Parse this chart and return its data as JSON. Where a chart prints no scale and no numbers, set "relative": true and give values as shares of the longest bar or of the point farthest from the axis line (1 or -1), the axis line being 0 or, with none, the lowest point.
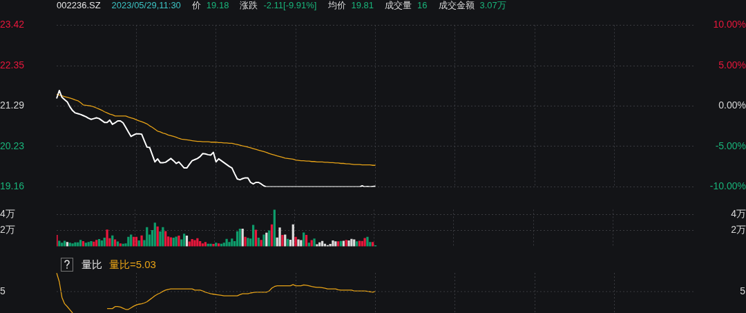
{
  "chart_data": [
    {
      "type": "line",
      "annotations": [
        "002236.SZ",
        "2023/05/29,11:30",
        "价",
        "19.18",
        "涨跌",
        "-2.11[-9.91%]",
        "均价",
        "19.81",
        "成交量",
        "16",
        "成交金额",
        "3.07万"
      ],
      "categories": [
        null,
        null,
        null,
        null,
        null,
        null,
        null,
        null,
        null,
        null,
        null,
        null,
        null,
        null,
        null,
        null,
        null,
        null,
        null,
        null,
        null,
        null,
        null,
        null,
        null,
        null,
        null,
        null,
        null,
        null,
        null,
        null,
        null,
        null,
        null,
        null,
        null,
        null,
        null,
        null,
        null,
        null,
        null,
        null,
        null,
        null,
        null,
        null,
        null,
        null,
        null,
        null,
        null,
        null,
        null,
        null,
        null,
        null,
        null,
        null,
        null,
        null,
        null,
        null,
        null,
        null,
        null,
        null,
        null,
        null,
        null,
        null,
        null,
        null,
        null,
        null,
        null,
        null,
        null,
        null,
        null,
        null,
        null,
        null,
        null,
        null,
        null,
        null,
        null,
        null,
        null,
        null,
        null,
        null,
        null,
        null,
        null,
        null,
        null,
        null,
        null,
        null,
        null,
        null,
        null,
        null,
        null,
        null,
        null,
        null,
        null,
        null,
        null,
        null,
        null,
        null,
        null,
        null,
        null,
        null,
        null,
        null,
        null,
        null,
        null,
        null,
        null,
        null,
        null,
        null,
        null,
        null,
        null,
        null,
        null,
        null,
        null,
        null,
        null,
        null,
        null,
        null,
        null,
        null,
        null,
        null,
        null,
        null,
        null,
        null,
        null,
        null,
        null,
        null,
        null,
        null,
        null,
        null,
        null,
        null,
        null,
        null,
        null,
        null,
        null,
        null,
        null,
        null,
        null,
        null,
        null,
        null,
        null,
        null,
        null,
        null,
        null,
        null,
        null,
        null,
        null,
        null,
        null,
        null,
        null,
        null,
        null,
        null,
        null,
        null,
        null,
        null,
        null,
        null,
        null,
        null,
        null,
        null,
        null,
        null,
        null,
        null,
        null,
        null,
        null,
        null,
        null,
        null,
        null,
        null,
        null,
        null,
        null,
        null,
        null,
        null,
        null,
        null,
        null,
        null,
        null,
        null,
        null,
        null,
        null,
        null,
        null,
        null,
        null,
        null,
        null,
        null,
        null,
        null,
        null,
        null,
        null,
        null,
        null,
        null,
        null
      ],
      "series": [
        {
          "color": "#ffffff",
          "values": [
            21.49,
            21.7,
            21.52,
            21.46,
            21.4,
            21.27,
            21.17,
            21.11,
            21.09,
            21.07,
            21.04,
            21.01,
            20.97,
            20.94,
            20.96,
            20.98,
            20.96,
            20.91,
            20.86,
            20.86,
            20.92,
            20.81,
            20.85,
            20.9,
            20.9,
            20.85,
            20.73,
            20.61,
            20.49,
            20.53,
            20.56,
            20.56,
            20.55,
            20.38,
            20.21,
            20.2,
            20.01,
            19.82,
            19.9,
            19.8,
            19.8,
            19.81,
            19.86,
            19.91,
            19.85,
            19.78,
            19.82,
            19.74,
            19.66,
            19.66,
            19.76,
            19.85,
            19.88,
            19.91,
            19.96,
            20.04,
            20.03,
            20.01,
            20.0,
            20.07,
            19.82,
            19.9,
            19.85,
            19.8,
            19.75,
            19.7,
            19.66,
            19.51,
            19.37,
            19.35,
            19.38,
            19.4,
            19.4,
            19.28,
            19.24,
            19.28,
            19.28,
            19.24,
            19.19,
            19.16,
            19.16,
            19.16,
            19.16,
            19.16,
            19.16,
            19.16,
            19.16,
            19.16,
            19.16,
            19.16,
            19.16,
            19.16,
            19.16,
            19.16,
            19.16,
            19.16,
            19.16,
            19.16,
            19.16,
            19.16,
            19.16,
            19.16,
            19.16,
            19.16,
            19.16,
            19.16,
            19.16,
            19.16,
            19.16,
            19.16,
            19.16,
            19.16,
            19.16,
            19.16,
            19.16,
            19.19,
            19.16,
            19.17,
            19.16,
            19.17,
            19.18,
            null,
            null,
            null,
            null,
            null,
            null,
            null,
            null,
            null,
            null,
            null,
            null,
            null,
            null,
            null,
            null,
            null,
            null,
            null,
            null,
            null,
            null,
            null,
            null,
            null,
            null,
            null,
            null,
            null,
            null,
            null,
            null,
            null,
            null,
            null,
            null,
            null,
            null,
            null,
            null,
            null,
            null,
            null,
            null,
            null,
            null,
            null,
            null,
            null,
            null,
            null,
            null,
            null,
            null,
            null,
            null,
            null,
            null,
            null,
            null,
            null,
            null,
            null,
            null,
            null,
            null,
            null,
            null,
            null,
            null,
            null,
            null,
            null,
            null,
            null,
            null,
            null,
            null,
            null,
            null,
            null,
            null,
            null,
            null,
            null,
            null,
            null,
            null,
            null,
            null,
            null,
            null,
            null,
            null,
            null,
            null,
            null,
            null,
            null,
            null,
            null,
            null,
            null,
            null,
            null,
            null,
            null,
            null,
            null,
            null,
            null,
            null,
            null,
            null,
            null,
            null,
            null,
            null,
            null,
            null
          ]
        },
        {
          "color": "#e8a317",
          "values": [
            21.6,
            21.58,
            21.56,
            21.54,
            21.52,
            21.5,
            21.48,
            21.45,
            21.43,
            21.38,
            21.32,
            21.31,
            21.3,
            21.29,
            21.27,
            21.24,
            21.21,
            21.18,
            21.14,
            21.11,
            21.08,
            21.06,
            21.03,
            21.03,
            21.03,
            21.03,
            21.03,
            21.0,
            20.98,
            20.96,
            20.93,
            20.9,
            20.88,
            20.85,
            20.82,
            20.77,
            20.73,
            20.68,
            20.63,
            20.61,
            20.58,
            20.56,
            20.53,
            20.51,
            20.49,
            20.47,
            20.44,
            20.42,
            20.41,
            20.4,
            20.39,
            20.38,
            20.37,
            20.36,
            20.36,
            20.35,
            20.35,
            20.35,
            20.34,
            20.34,
            20.34,
            20.33,
            20.33,
            20.32,
            20.32,
            20.31,
            20.31,
            20.29,
            20.28,
            20.26,
            20.24,
            20.23,
            20.21,
            20.19,
            20.17,
            20.15,
            20.13,
            20.11,
            20.09,
            20.07,
            20.04,
            20.02,
            20.0,
            19.98,
            19.96,
            19.94,
            19.92,
            19.91,
            19.9,
            19.89,
            19.87,
            19.86,
            19.85,
            19.85,
            19.84,
            19.84,
            19.83,
            19.83,
            19.82,
            19.82,
            19.82,
            19.81,
            19.81,
            19.8,
            19.8,
            19.79,
            19.79,
            19.78,
            19.78,
            19.77,
            19.77,
            19.76,
            19.75,
            19.75,
            19.75,
            19.74,
            19.74,
            19.74,
            19.74,
            19.73,
            19.73,
            null,
            null,
            null,
            null,
            null,
            null,
            null,
            null,
            null,
            null,
            null,
            null,
            null,
            null,
            null,
            null,
            null,
            null,
            null,
            null,
            null,
            null,
            null,
            null,
            null,
            null,
            null,
            null,
            null,
            null,
            null,
            null,
            null,
            null,
            null,
            null,
            null,
            null,
            null,
            null,
            null,
            null,
            null,
            null,
            null,
            null,
            null,
            null,
            null,
            null,
            null,
            null,
            null,
            null,
            null,
            null,
            null,
            null,
            null,
            null,
            null,
            null,
            null,
            null,
            null,
            null,
            null,
            null,
            null,
            null,
            null,
            null,
            null,
            null,
            null,
            null,
            null,
            null,
            null,
            null,
            null,
            null,
            null,
            null,
            null,
            null,
            null,
            null,
            null,
            null,
            null,
            null,
            null,
            null,
            null,
            null,
            null,
            null,
            null,
            null,
            null,
            null,
            null,
            null,
            null,
            null,
            null,
            null,
            null,
            null,
            null,
            null,
            null,
            null,
            null,
            null,
            null,
            null,
            null,
            null
          ]
        }
      ],
      "ylim": [
        19.16,
        23.42
      ],
      "yticks": [
        19.16,
        20.23,
        21.29,
        22.35,
        23.42
      ],
      "y2lim": [
        -10,
        10
      ],
      "y2ticks": [
        {
          "value": -10,
          "label": "-10.00%"
        },
        {
          "value": -5,
          "label": "-5.00%"
        },
        {
          "value": 0,
          "label": "0.00%"
        },
        {
          "value": 5,
          "label": "5.00%"
        },
        {
          "value": 10,
          "label": "10.00%"
        }
      ],
      "grid": true,
      "tick_labels": "y"
    },
    {
      "type": "bar",
      "categories": [
        null,
        null,
        null,
        null,
        null,
        null,
        null,
        null,
        null,
        null,
        null,
        null,
        null,
        null,
        null,
        null,
        null,
        null,
        null,
        null,
        null,
        null,
        null,
        null,
        null,
        null,
        null,
        null,
        null,
        null,
        null,
        null,
        null,
        null,
        null,
        null,
        null,
        null,
        null,
        null,
        null,
        null,
        null,
        null,
        null,
        null,
        null,
        null,
        null,
        null,
        null,
        null,
        null,
        null,
        null,
        null,
        null,
        null,
        null,
        null,
        null,
        null,
        null,
        null,
        null,
        null,
        null,
        null,
        null,
        null,
        null,
        null,
        null,
        null,
        null,
        null,
        null,
        null,
        null,
        null,
        null,
        null,
        null,
        null,
        null,
        null,
        null,
        null,
        null,
        null,
        null,
        null,
        null,
        null,
        null,
        null,
        null,
        null,
        null,
        null,
        null,
        null,
        null,
        null,
        null,
        null,
        null,
        null,
        null,
        null,
        null,
        null,
        null,
        null,
        null,
        null,
        null,
        null,
        null,
        null,
        null,
        null,
        null,
        null,
        null,
        null,
        null,
        null,
        null,
        null,
        null,
        null,
        null,
        null,
        null,
        null,
        null,
        null,
        null,
        null,
        null,
        null,
        null,
        null,
        null,
        null,
        null,
        null,
        null,
        null,
        null,
        null,
        null,
        null,
        null,
        null,
        null,
        null,
        null,
        null,
        null,
        null,
        null,
        null,
        null,
        null,
        null,
        null,
        null,
        null,
        null,
        null,
        null,
        null,
        null,
        null,
        null,
        null,
        null,
        null,
        null,
        null,
        null,
        null,
        null,
        null,
        null,
        null,
        null,
        null,
        null,
        null,
        null,
        null,
        null,
        null,
        null,
        null,
        null,
        null,
        null,
        null,
        null,
        null,
        null,
        null,
        null,
        null,
        null,
        null,
        null,
        null,
        null,
        null,
        null,
        null,
        null,
        null,
        null,
        null,
        null,
        null,
        null,
        null,
        null,
        null,
        null,
        null,
        null,
        null,
        null,
        null,
        null,
        null,
        null,
        null,
        null,
        null,
        null,
        null,
        null
      ],
      "series": [
        {
          "values": [
            1.4,
            0.67,
            0.43,
            0.67,
            0.52,
            0.43,
            0.34,
            0.47,
            0.47,
            0.79,
            0.62,
            0.43,
            0.52,
            0.62,
            0.56,
            0.79,
            0.88,
            0.71,
            1.07,
            2.07,
            0.99,
            1.35,
            0.84,
            0.58,
            0.34,
            0.3,
            0.34,
            1.16,
            1.44,
            1.16,
            1.16,
            0.71,
            1.35,
            0.75,
            2.39,
            1.44,
            2.02,
            2.95,
            2.47,
            1.83,
            2.39,
            1.89,
            1.21,
            1.1,
            1.07,
            1.18,
            1.31,
            0.84,
            1.55,
            1.31,
            0.58,
            0.88,
            0.75,
            0.99,
            0.62,
            0.34,
            0.52,
            0.3,
            0.3,
            0.28,
            0.43,
            0.34,
            0.3,
            0.43,
            0.9,
            0.52,
            0.95,
            0.62,
            1.87,
            2.19,
            2.19,
            1.16,
            1.03,
            0.95,
            2.67,
            2.06,
            1.07,
            0.79,
            1.44,
            1.68,
            1.96,
            2.73,
            4.6,
            1.08,
            2.34,
            1.4,
            1.46,
            0.9,
            0.8,
            2.73,
            1.16,
            0.84,
            0.75,
            1.72,
            1.4,
            0.43,
            0.75,
            0.95,
            0.24,
            0.47,
            0.65,
            0.3,
            0.13,
            0.28,
            0.71,
            0.6,
            0.6,
            0.65,
            0.67,
            0.79,
            0.71,
            0.9,
            0.84,
            0.6,
            0.67,
            0.65,
            1.01,
            1.16,
            0.52,
            0.52,
            0.11,
            null,
            null,
            null,
            null,
            null,
            null,
            null,
            null,
            null,
            null,
            null,
            null,
            null,
            null,
            null,
            null,
            null,
            null,
            null,
            null,
            null,
            null,
            null,
            null,
            null,
            null,
            null,
            null,
            null,
            null,
            null,
            null,
            null,
            null,
            null,
            null,
            null,
            null,
            null,
            null,
            null,
            null,
            null,
            null,
            null,
            null,
            null,
            null,
            null,
            null,
            null,
            null,
            null,
            null,
            null,
            null,
            null,
            null,
            null,
            null,
            null,
            null,
            null,
            null,
            null,
            null,
            null,
            null,
            null,
            null,
            null,
            null,
            null,
            null,
            null,
            null,
            null,
            null,
            null,
            null,
            null,
            null,
            null,
            null,
            null,
            null,
            null,
            null,
            null,
            null,
            null,
            null,
            null,
            null,
            null,
            null,
            null,
            null,
            null,
            null,
            null,
            null,
            null,
            null,
            null,
            null,
            null,
            null,
            null,
            null,
            null,
            null,
            null,
            null,
            null,
            null,
            null,
            null,
            null,
            null
          ],
          "colors": [
            "#e8173c",
            "#0e9c6b",
            "#0e9c6b",
            "#0e9c6b",
            "#dcdcdc",
            "#0e9c6b",
            "#0e9c6b",
            "#0e9c6b",
            "#0e9c6b",
            "#0e9c6b",
            "#e8173c",
            "#0e9c6b",
            "#0e9c6b",
            "#0e9c6b",
            "#e8173c",
            "#e8173c",
            "#0e9c6b",
            "#0e9c6b",
            "#0e9c6b",
            "#e8173c",
            "#e8173c",
            "#0e9c6b",
            "#e8173c",
            "#0e9c6b",
            "#e8173c",
            "#0e9c6b",
            "#0e9c6b",
            "#0e9c6b",
            "#0e9c6b",
            "#e8173c",
            "#e8173c",
            "#0e9c6b",
            "#e8173c",
            "#0e9c6b",
            "#0e9c6b",
            "#0e9c6b",
            "#0e9c6b",
            "#0e9c6b",
            "#e8173c",
            "#0e9c6b",
            "#0e9c6b",
            "#e8173c",
            "#e8173c",
            "#e8173c",
            "#0e9c6b",
            "#0e9c6b",
            "#e8173c",
            "#0e9c6b",
            "#0e9c6b",
            "#dcdcdc",
            "#e8173c",
            "#e8173c",
            "#e8173c",
            "#e8173c",
            "#e8173c",
            "#e8173c",
            "#e8173c",
            "#0e9c6b",
            "#0e9c6b",
            "#e8173c",
            "#0e9c6b",
            "#e8173c",
            "#0e9c6b",
            "#0e9c6b",
            "#0e9c6b",
            "#0e9c6b",
            "#0e9c6b",
            "#0e9c6b",
            "#0e9c6b",
            "#0e9c6b",
            "#dcdcdc",
            "#e8173c",
            "#0e9c6b",
            "#0e9c6b",
            "#0e9c6b",
            "#e8173c",
            "#0e9c6b",
            "#e8173c",
            "#0e9c6b",
            "#dcdcdc",
            "#0e9c6b",
            "#e8173c",
            "#0e9c6b",
            "#dcdcdc",
            "#dcdcdc",
            "#e8173c",
            "#dcdcdc",
            "#0e9c6b",
            "#dcdcdc",
            "#dcdcdc",
            "#e8173c",
            "#dcdcdc",
            "#dcdcdc",
            "#0e9c6b",
            "#e8173c",
            "#0e9c6b",
            "#e8173c",
            "#0e9c6b",
            "#dcdcdc",
            "#dcdcdc",
            "#dcdcdc",
            "#dcdcdc",
            "#dcdcdc",
            "#dcdcdc",
            "#dcdcdc",
            "#dcdcdc",
            "#e8173c",
            "#0e9c6b",
            "#dcdcdc",
            "#e8173c",
            "#dcdcdc",
            "#dcdcdc",
            "#dcdcdc",
            "#0e9c6b",
            "#e8173c",
            "#e8173c",
            "#e8173c",
            "#0e9c6b",
            "#0e9c6b",
            "#e8173c",
            "#0e9c6b",
            null,
            null,
            null,
            null,
            null,
            null,
            null,
            null,
            null,
            null,
            null,
            null,
            null,
            null,
            null,
            null,
            null,
            null,
            null,
            null,
            null,
            null,
            null,
            null,
            null,
            null,
            null,
            null,
            null,
            null,
            null,
            null,
            null,
            null,
            null,
            null,
            null,
            null,
            null,
            null,
            null,
            null,
            null,
            null,
            null,
            null,
            null,
            null,
            null,
            null,
            null,
            null,
            null,
            null,
            null,
            null,
            null,
            null,
            null,
            null,
            null,
            null,
            null,
            null,
            null,
            null,
            null,
            null,
            null,
            null,
            null,
            null,
            null,
            null,
            null,
            null,
            null,
            null,
            null,
            null,
            null,
            null,
            null,
            null,
            null,
            null,
            null,
            null,
            null,
            null,
            null,
            null,
            null,
            null,
            null,
            null,
            null,
            null,
            null,
            null,
            null,
            null,
            null,
            null,
            null,
            null,
            null,
            null,
            null,
            null,
            null,
            null,
            null,
            null,
            null,
            null,
            null,
            null,
            null,
            null
          ]
        }
      ],
      "ylim": [
        0,
        4.6
      ],
      "yticks": [
        {
          "value": 2,
          "label": "2万"
        },
        {
          "value": 4,
          "label": "4万"
        }
      ],
      "y2lim": [
        0,
        4.6
      ],
      "y2ticks": [
        {
          "value": 2,
          "label": "2万"
        },
        {
          "value": 4,
          "label": "4万"
        }
      ],
      "grid": true,
      "tick_labels": "y"
    },
    {
      "type": "line",
      "title": "量比",
      "annotations": [
        "量比=5.03",
        {
          "text": "5"
        }
      ],
      "relative": true,
      "categories": [
        null,
        null,
        null,
        null,
        null,
        null,
        null,
        null,
        null,
        null,
        null,
        null,
        null,
        null,
        null,
        null,
        null,
        null,
        null,
        null,
        null,
        null,
        null,
        null,
        null,
        null,
        null,
        null,
        null,
        null,
        null,
        null,
        null,
        null,
        null,
        null,
        null,
        null,
        null,
        null,
        null,
        null,
        null,
        null,
        null,
        null,
        null,
        null,
        null,
        null,
        null,
        null,
        null,
        null,
        null,
        null,
        null,
        null,
        null,
        null,
        null,
        null,
        null,
        null,
        null,
        null,
        null,
        null,
        null,
        null,
        null,
        null,
        null,
        null,
        null,
        null,
        null,
        null,
        null,
        null,
        null,
        null,
        null,
        null,
        null,
        null,
        null,
        null,
        null,
        null,
        null,
        null,
        null,
        null,
        null,
        null,
        null,
        null,
        null,
        null,
        null,
        null,
        null,
        null,
        null,
        null,
        null,
        null,
        null,
        null,
        null,
        null,
        null,
        null,
        null,
        null,
        null,
        null,
        null,
        null,
        null,
        null,
        null,
        null,
        null,
        null,
        null,
        null,
        null,
        null,
        null,
        null,
        null,
        null,
        null,
        null,
        null,
        null,
        null,
        null,
        null,
        null,
        null,
        null,
        null,
        null,
        null,
        null,
        null,
        null,
        null,
        null,
        null,
        null,
        null,
        null,
        null,
        null,
        null,
        null,
        null,
        null,
        null,
        null,
        null,
        null,
        null,
        null,
        null,
        null,
        null,
        null,
        null,
        null,
        null,
        null,
        null,
        null,
        null,
        null,
        null,
        null,
        null,
        null,
        null,
        null,
        null,
        null,
        null,
        null,
        null,
        null,
        null,
        null,
        null,
        null,
        null,
        null,
        null,
        null,
        null,
        null,
        null,
        null,
        null,
        null,
        null,
        null,
        null,
        null,
        null,
        null,
        null,
        null,
        null,
        null,
        null,
        null,
        null,
        null,
        null,
        null,
        null,
        null,
        null,
        null,
        null,
        null,
        null,
        null,
        null,
        null,
        null,
        null,
        null,
        null,
        null,
        null,
        null,
        null,
        null
      ],
      "series": [
        {
          "color": "#e8a317",
          "values": [
            1.0,
            0.78,
            0.39,
            0.23,
            0.16,
            0.08,
            0.0,
            null,
            null,
            null,
            null,
            null,
            null,
            null,
            null,
            null,
            null,
            null,
            null,
            0.11,
            0.11,
            0.11,
            0.16,
            0.16,
            0.15,
            0.12,
            0.09,
            0.09,
            0.13,
            0.17,
            0.2,
            0.22,
            0.23,
            0.25,
            0.28,
            0.33,
            0.38,
            0.43,
            0.47,
            0.5,
            0.54,
            0.57,
            0.59,
            0.6,
            0.6,
            0.6,
            0.6,
            0.6,
            0.6,
            0.6,
            0.6,
            0.6,
            0.57,
            0.57,
            0.57,
            0.55,
            0.52,
            0.5,
            0.48,
            0.47,
            0.46,
            0.45,
            0.44,
            0.43,
            0.43,
            0.43,
            0.43,
            0.43,
            0.43,
            0.46,
            0.48,
            0.48,
            0.48,
            0.5,
            0.51,
            0.52,
            0.52,
            0.52,
            0.52,
            0.52,
            0.55,
            0.62,
            0.66,
            0.68,
            0.68,
            0.68,
            0.68,
            0.68,
            0.68,
            0.71,
            0.68,
            0.68,
            0.68,
            0.7,
            0.69,
            0.68,
            0.66,
            0.65,
            0.64,
            0.64,
            0.63,
            0.62,
            0.6,
            0.6,
            0.6,
            0.6,
            0.58,
            0.57,
            0.57,
            0.57,
            0.57,
            0.57,
            0.55,
            0.55,
            0.55,
            0.55,
            0.55,
            0.54,
            0.53,
            0.52,
            0.54,
            null,
            null,
            null,
            null,
            null,
            null,
            null,
            null,
            null,
            null,
            null,
            null,
            null,
            null,
            null,
            null,
            null,
            null,
            null,
            null,
            null,
            null,
            null,
            null,
            null,
            null,
            null,
            null,
            null,
            null,
            null,
            null,
            null,
            null,
            null,
            null,
            null,
            null,
            null,
            null,
            null,
            null,
            null,
            null,
            null,
            null,
            null,
            null,
            null,
            null,
            null,
            null,
            null,
            null,
            null,
            null,
            null,
            null,
            null,
            null,
            null,
            null,
            null,
            null,
            null,
            null,
            null,
            null,
            null,
            null,
            null,
            null,
            null,
            null,
            null,
            null,
            null,
            null,
            null,
            null,
            null,
            null,
            null,
            null,
            null,
            null,
            null,
            null,
            null,
            null,
            null,
            null,
            null,
            null,
            null,
            null,
            null,
            null,
            null,
            null,
            null,
            null,
            null,
            null,
            null,
            null,
            null,
            null,
            null,
            null,
            null,
            null,
            null,
            null,
            null,
            null,
            null,
            null,
            null,
            null
          ]
        }
      ],
      "grid": true,
      "tick_labels": "y"
    }
  ]
}
